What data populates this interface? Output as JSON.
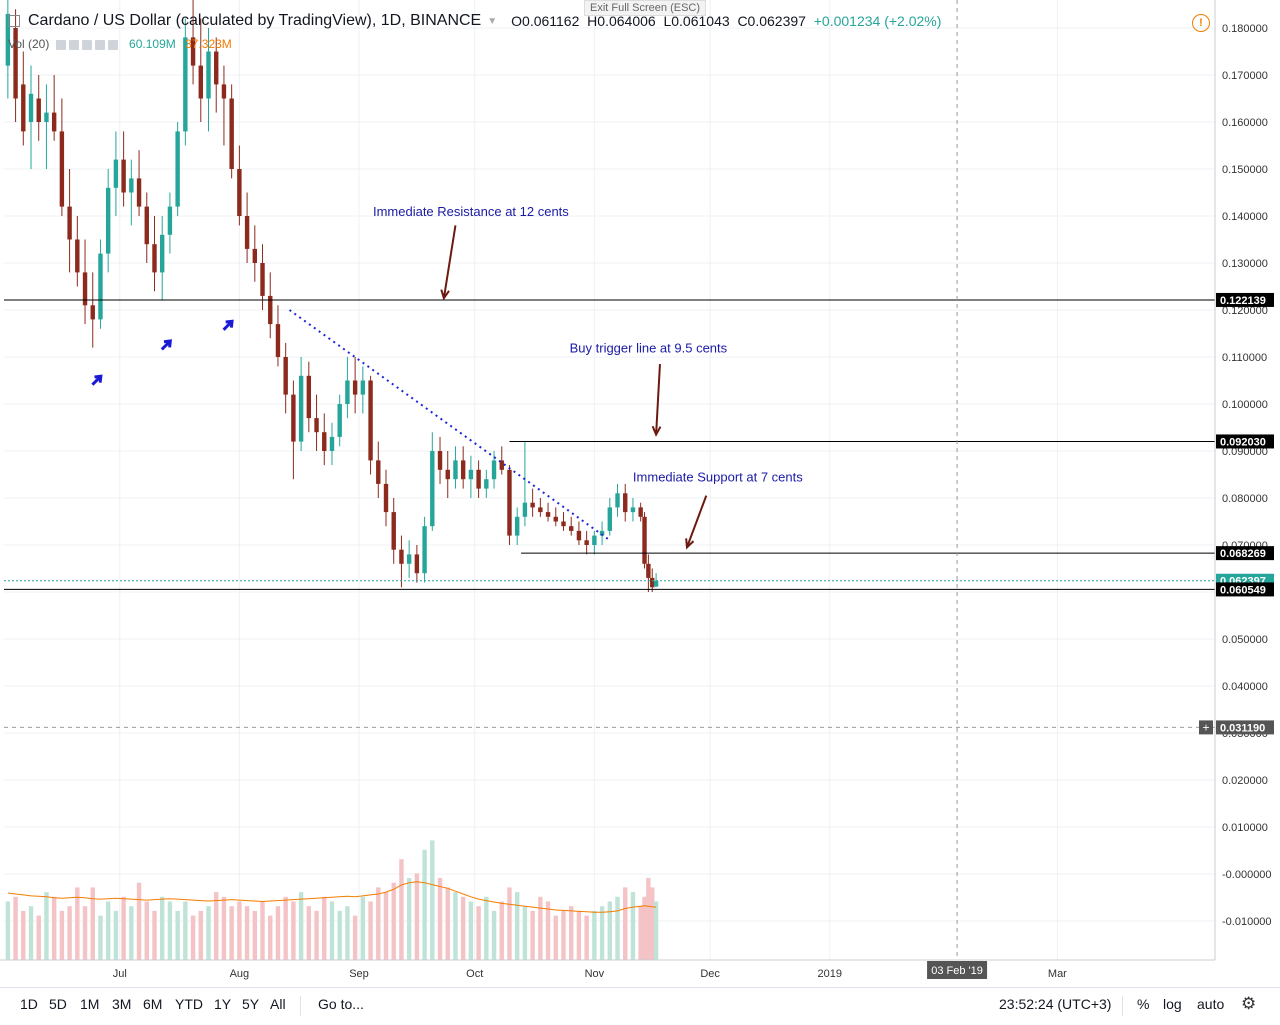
{
  "header": {
    "exit_fullscreen": "Exit Full Screen (ESC)",
    "symbol": "Cardano / US Dollar (calculated by TradingView), 1D, BINANCE",
    "open": "O0.061162",
    "high": "H0.064006",
    "low": "L0.061043",
    "close": "C0.062397",
    "change": "+0.001234 (+2.02%)",
    "vol_label": "Vol (20)",
    "vol_value": "60.109M",
    "vol_ma": "37.323M",
    "warning_icon": "exclamation-circle-icon"
  },
  "chart_data": {
    "type": "candlestick",
    "title": "Cardano / US Dollar (calculated by TradingView), 1D, BINANCE",
    "ylim": [
      -0.015,
      0.185
    ],
    "y_ticks": [
      "0.180000",
      "0.170000",
      "0.160000",
      "0.150000",
      "0.140000",
      "0.130000",
      "0.120000",
      "0.110000",
      "0.100000",
      "0.090000",
      "0.080000",
      "0.070000",
      "0.060000",
      "0.050000",
      "0.040000",
      "0.030000",
      "0.020000",
      "0.010000",
      "-0.000000",
      "-0.010000"
    ],
    "x_ticks": [
      "Jul",
      "Aug",
      "Sep",
      "Oct",
      "Nov",
      "Dec",
      "2019",
      "Mar"
    ],
    "x_range": [
      "2018-06-01",
      "2019-03-25"
    ],
    "price_labels": [
      {
        "value": "0.122139",
        "price": 0.122139,
        "color": "#000000"
      },
      {
        "value": "0.092030",
        "price": 0.09203,
        "color": "#000000"
      },
      {
        "value": "0.068269",
        "price": 0.068269,
        "color": "#000000"
      },
      {
        "value": "0.062397",
        "price": 0.062397,
        "color": "#26a69a"
      },
      {
        "value": "0.060549",
        "price": 0.060549,
        "color": "#000000"
      },
      {
        "value": "0.031190",
        "price": 0.03119,
        "color": "#555555"
      }
    ],
    "crosshair": {
      "date": "03 Feb '19",
      "price": 0.03119
    },
    "horizontal_lines": [
      {
        "price": 0.122139,
        "from": "2018-06-01"
      },
      {
        "price": 0.09203,
        "from": "2018-10-10"
      },
      {
        "price": 0.068269,
        "from": "2018-10-13"
      },
      {
        "price": 0.060549,
        "from": "2018-06-01"
      }
    ],
    "trendline": {
      "from": [
        "2018-08-14",
        0.12
      ],
      "to": [
        "2018-11-05",
        0.071
      ]
    },
    "annotations": [
      {
        "text": "Immediate Resistance at 12 cents",
        "date": "2018-09-30",
        "price": 0.14
      },
      {
        "text": "Buy trigger line at 9.5 cents",
        "date": "2018-11-15",
        "price": 0.111
      },
      {
        "text": "Immediate Support at 7 cents",
        "date": "2018-12-03",
        "price": 0.0835
      }
    ],
    "arrows": [
      {
        "from": [
          "2018-09-26",
          0.138
        ],
        "to": [
          "2018-09-23",
          0.1225
        ]
      },
      {
        "from": [
          "2018-11-18",
          0.1085
        ],
        "to": [
          "2018-11-17",
          0.0935
        ]
      },
      {
        "from": [
          "2018-11-30",
          0.0805
        ],
        "to": [
          "2018-11-25",
          0.0695
        ]
      }
    ],
    "markers": [
      {
        "date": "2018-06-25",
        "price": 0.105
      },
      {
        "date": "2018-07-13",
        "price": 0.1125
      },
      {
        "date": "2018-07-29",
        "price": 0.1167
      }
    ],
    "candles": [
      {
        "d": "2018-06-02",
        "o": 0.172,
        "h": 0.186,
        "l": 0.165,
        "c": 0.183
      },
      {
        "d": "2018-06-04",
        "o": 0.18,
        "h": 0.184,
        "l": 0.16,
        "c": 0.165
      },
      {
        "d": "2018-06-06",
        "o": 0.168,
        "h": 0.175,
        "l": 0.155,
        "c": 0.158
      },
      {
        "d": "2018-06-08",
        "o": 0.16,
        "h": 0.172,
        "l": 0.15,
        "c": 0.166
      },
      {
        "d": "2018-06-10",
        "o": 0.165,
        "h": 0.17,
        "l": 0.156,
        "c": 0.16
      },
      {
        "d": "2018-06-12",
        "o": 0.16,
        "h": 0.168,
        "l": 0.15,
        "c": 0.162
      },
      {
        "d": "2018-06-14",
        "o": 0.162,
        "h": 0.17,
        "l": 0.156,
        "c": 0.158
      },
      {
        "d": "2018-06-16",
        "o": 0.158,
        "h": 0.165,
        "l": 0.14,
        "c": 0.142
      },
      {
        "d": "2018-06-18",
        "o": 0.142,
        "h": 0.15,
        "l": 0.128,
        "c": 0.135
      },
      {
        "d": "2018-06-20",
        "o": 0.135,
        "h": 0.14,
        "l": 0.125,
        "c": 0.128
      },
      {
        "d": "2018-06-22",
        "o": 0.128,
        "h": 0.135,
        "l": 0.117,
        "c": 0.121
      },
      {
        "d": "2018-06-24",
        "o": 0.121,
        "h": 0.128,
        "l": 0.112,
        "c": 0.118
      },
      {
        "d": "2018-06-26",
        "o": 0.118,
        "h": 0.135,
        "l": 0.116,
        "c": 0.132
      },
      {
        "d": "2018-06-28",
        "o": 0.132,
        "h": 0.15,
        "l": 0.128,
        "c": 0.146
      },
      {
        "d": "2018-06-30",
        "o": 0.146,
        "h": 0.158,
        "l": 0.14,
        "c": 0.152
      },
      {
        "d": "2018-07-02",
        "o": 0.152,
        "h": 0.158,
        "l": 0.142,
        "c": 0.145
      },
      {
        "d": "2018-07-04",
        "o": 0.145,
        "h": 0.152,
        "l": 0.138,
        "c": 0.148
      },
      {
        "d": "2018-07-06",
        "o": 0.148,
        "h": 0.154,
        "l": 0.14,
        "c": 0.142
      },
      {
        "d": "2018-07-08",
        "o": 0.142,
        "h": 0.145,
        "l": 0.13,
        "c": 0.134
      },
      {
        "d": "2018-07-10",
        "o": 0.134,
        "h": 0.14,
        "l": 0.124,
        "c": 0.128
      },
      {
        "d": "2018-07-12",
        "o": 0.128,
        "h": 0.14,
        "l": 0.122,
        "c": 0.136
      },
      {
        "d": "2018-07-14",
        "o": 0.136,
        "h": 0.145,
        "l": 0.132,
        "c": 0.142
      },
      {
        "d": "2018-07-16",
        "o": 0.142,
        "h": 0.16,
        "l": 0.14,
        "c": 0.158
      },
      {
        "d": "2018-07-18",
        "o": 0.158,
        "h": 0.182,
        "l": 0.155,
        "c": 0.178
      },
      {
        "d": "2018-07-20",
        "o": 0.178,
        "h": 0.188,
        "l": 0.168,
        "c": 0.172
      },
      {
        "d": "2018-07-22",
        "o": 0.172,
        "h": 0.182,
        "l": 0.16,
        "c": 0.165
      },
      {
        "d": "2018-07-24",
        "o": 0.165,
        "h": 0.18,
        "l": 0.158,
        "c": 0.175
      },
      {
        "d": "2018-07-26",
        "o": 0.175,
        "h": 0.178,
        "l": 0.162,
        "c": 0.168
      },
      {
        "d": "2018-07-28",
        "o": 0.168,
        "h": 0.172,
        "l": 0.155,
        "c": 0.165
      },
      {
        "d": "2018-07-30",
        "o": 0.165,
        "h": 0.168,
        "l": 0.148,
        "c": 0.15
      },
      {
        "d": "2018-08-01",
        "o": 0.15,
        "h": 0.155,
        "l": 0.138,
        "c": 0.14
      },
      {
        "d": "2018-08-03",
        "o": 0.14,
        "h": 0.145,
        "l": 0.13,
        "c": 0.133
      },
      {
        "d": "2018-08-05",
        "o": 0.133,
        "h": 0.138,
        "l": 0.126,
        "c": 0.13
      },
      {
        "d": "2018-08-07",
        "o": 0.13,
        "h": 0.134,
        "l": 0.12,
        "c": 0.123
      },
      {
        "d": "2018-08-09",
        "o": 0.123,
        "h": 0.128,
        "l": 0.114,
        "c": 0.117
      },
      {
        "d": "2018-08-11",
        "o": 0.117,
        "h": 0.121,
        "l": 0.108,
        "c": 0.11
      },
      {
        "d": "2018-08-13",
        "o": 0.11,
        "h": 0.113,
        "l": 0.098,
        "c": 0.102
      },
      {
        "d": "2018-08-15",
        "o": 0.102,
        "h": 0.105,
        "l": 0.084,
        "c": 0.092
      },
      {
        "d": "2018-08-17",
        "o": 0.092,
        "h": 0.11,
        "l": 0.09,
        "c": 0.106
      },
      {
        "d": "2018-08-19",
        "o": 0.106,
        "h": 0.109,
        "l": 0.094,
        "c": 0.097
      },
      {
        "d": "2018-08-21",
        "o": 0.097,
        "h": 0.102,
        "l": 0.09,
        "c": 0.094
      },
      {
        "d": "2018-08-23",
        "o": 0.094,
        "h": 0.098,
        "l": 0.087,
        "c": 0.09
      },
      {
        "d": "2018-08-25",
        "o": 0.09,
        "h": 0.096,
        "l": 0.087,
        "c": 0.093
      },
      {
        "d": "2018-08-27",
        "o": 0.093,
        "h": 0.102,
        "l": 0.091,
        "c": 0.1
      },
      {
        "d": "2018-08-29",
        "o": 0.1,
        "h": 0.11,
        "l": 0.097,
        "c": 0.105
      },
      {
        "d": "2018-08-31",
        "o": 0.105,
        "h": 0.11,
        "l": 0.098,
        "c": 0.102
      },
      {
        "d": "2018-09-02",
        "o": 0.102,
        "h": 0.108,
        "l": 0.098,
        "c": 0.105
      },
      {
        "d": "2018-09-04",
        "o": 0.105,
        "h": 0.106,
        "l": 0.085,
        "c": 0.088
      },
      {
        "d": "2018-09-06",
        "o": 0.088,
        "h": 0.092,
        "l": 0.08,
        "c": 0.083
      },
      {
        "d": "2018-09-08",
        "o": 0.083,
        "h": 0.086,
        "l": 0.074,
        "c": 0.077
      },
      {
        "d": "2018-09-10",
        "o": 0.077,
        "h": 0.08,
        "l": 0.066,
        "c": 0.069
      },
      {
        "d": "2018-09-12",
        "o": 0.069,
        "h": 0.072,
        "l": 0.061,
        "c": 0.066
      },
      {
        "d": "2018-09-14",
        "o": 0.066,
        "h": 0.071,
        "l": 0.063,
        "c": 0.068
      },
      {
        "d": "2018-09-16",
        "o": 0.068,
        "h": 0.07,
        "l": 0.062,
        "c": 0.064
      },
      {
        "d": "2018-09-18",
        "o": 0.064,
        "h": 0.076,
        "l": 0.062,
        "c": 0.074
      },
      {
        "d": "2018-09-20",
        "o": 0.074,
        "h": 0.094,
        "l": 0.073,
        "c": 0.09
      },
      {
        "d": "2018-09-22",
        "o": 0.09,
        "h": 0.093,
        "l": 0.083,
        "c": 0.086
      },
      {
        "d": "2018-09-24",
        "o": 0.086,
        "h": 0.09,
        "l": 0.08,
        "c": 0.084
      },
      {
        "d": "2018-09-26",
        "o": 0.084,
        "h": 0.091,
        "l": 0.082,
        "c": 0.088
      },
      {
        "d": "2018-09-28",
        "o": 0.088,
        "h": 0.091,
        "l": 0.082,
        "c": 0.084
      },
      {
        "d": "2018-09-30",
        "o": 0.084,
        "h": 0.089,
        "l": 0.08,
        "c": 0.086
      },
      {
        "d": "2018-10-02",
        "o": 0.086,
        "h": 0.088,
        "l": 0.08,
        "c": 0.082
      },
      {
        "d": "2018-10-04",
        "o": 0.082,
        "h": 0.086,
        "l": 0.08,
        "c": 0.084
      },
      {
        "d": "2018-10-06",
        "o": 0.084,
        "h": 0.09,
        "l": 0.082,
        "c": 0.088
      },
      {
        "d": "2018-10-08",
        "o": 0.088,
        "h": 0.091,
        "l": 0.085,
        "c": 0.086
      },
      {
        "d": "2018-10-10",
        "o": 0.086,
        "h": 0.087,
        "l": 0.07,
        "c": 0.072
      },
      {
        "d": "2018-10-12",
        "o": 0.072,
        "h": 0.078,
        "l": 0.07,
        "c": 0.076
      },
      {
        "d": "2018-10-14",
        "o": 0.076,
        "h": 0.092,
        "l": 0.074,
        "c": 0.079
      },
      {
        "d": "2018-10-16",
        "o": 0.079,
        "h": 0.082,
        "l": 0.076,
        "c": 0.078
      },
      {
        "d": "2018-10-18",
        "o": 0.078,
        "h": 0.08,
        "l": 0.076,
        "c": 0.077
      },
      {
        "d": "2018-10-20",
        "o": 0.077,
        "h": 0.079,
        "l": 0.075,
        "c": 0.076
      },
      {
        "d": "2018-10-22",
        "o": 0.076,
        "h": 0.078,
        "l": 0.074,
        "c": 0.075
      },
      {
        "d": "2018-10-24",
        "o": 0.075,
        "h": 0.077,
        "l": 0.073,
        "c": 0.074
      },
      {
        "d": "2018-10-26",
        "o": 0.074,
        "h": 0.076,
        "l": 0.072,
        "c": 0.073
      },
      {
        "d": "2018-10-28",
        "o": 0.073,
        "h": 0.075,
        "l": 0.07,
        "c": 0.071
      },
      {
        "d": "2018-10-30",
        "o": 0.071,
        "h": 0.073,
        "l": 0.068,
        "c": 0.07
      },
      {
        "d": "2018-11-01",
        "o": 0.07,
        "h": 0.073,
        "l": 0.068,
        "c": 0.072
      },
      {
        "d": "2018-11-03",
        "o": 0.072,
        "h": 0.075,
        "l": 0.07,
        "c": 0.073
      },
      {
        "d": "2018-11-05",
        "o": 0.073,
        "h": 0.08,
        "l": 0.072,
        "c": 0.078
      },
      {
        "d": "2018-11-07",
        "o": 0.078,
        "h": 0.083,
        "l": 0.076,
        "c": 0.081
      },
      {
        "d": "2018-11-09",
        "o": 0.081,
        "h": 0.083,
        "l": 0.075,
        "c": 0.077
      },
      {
        "d": "2018-11-11",
        "o": 0.077,
        "h": 0.08,
        "l": 0.075,
        "c": 0.078
      },
      {
        "d": "2018-11-13",
        "o": 0.078,
        "h": 0.079,
        "l": 0.075,
        "c": 0.076
      },
      {
        "d": "2018-11-14",
        "o": 0.076,
        "h": 0.077,
        "l": 0.065,
        "c": 0.066
      },
      {
        "d": "2018-11-15",
        "o": 0.066,
        "h": 0.068,
        "l": 0.06,
        "c": 0.063
      },
      {
        "d": "2018-11-16",
        "o": 0.063,
        "h": 0.065,
        "l": 0.06,
        "c": 0.061
      },
      {
        "d": "2018-11-17",
        "o": 0.061162,
        "h": 0.064006,
        "l": 0.061043,
        "c": 0.062397
      }
    ],
    "volume": [
      0.005,
      0.006,
      0.003,
      0.004,
      0.002,
      0.007,
      0.006,
      0.003,
      0.004,
      0.008,
      0.004,
      0.008,
      0.002,
      0.005,
      0.003,
      0.006,
      0.004,
      0.009,
      0.005,
      0.003,
      0.006,
      0.005,
      0.003,
      0.005,
      0.002,
      0.003,
      0.004,
      0.007,
      0.006,
      0.004,
      0.005,
      0.004,
      0.003,
      0.005,
      0.002,
      0.004,
      0.006,
      0.005,
      0.007,
      0.004,
      0.003,
      0.006,
      0.005,
      0.003,
      0.004,
      0.002,
      0.006,
      0.005,
      0.008,
      0.007,
      0.009,
      0.014,
      0.01,
      0.011,
      0.016,
      0.018,
      0.01,
      0.008,
      0.007,
      0.006,
      0.005,
      0.004,
      0.006,
      0.003,
      0.005,
      0.008,
      0.007,
      0.004,
      0.003,
      0.006,
      0.005,
      0.002,
      0.003,
      0.004,
      0.003,
      0.002,
      0.003,
      0.004,
      0.005,
      0.006,
      0.008,
      0.007,
      0.004,
      0.006,
      0.01,
      0.008,
      0.005,
      0.003
    ],
    "volume_ma": [
      0.0068,
      0.0066,
      0.0064,
      0.0062,
      0.0061,
      0.006,
      0.0058,
      0.0057,
      0.0058,
      0.0059,
      0.0058,
      0.0056,
      0.0055,
      0.0056,
      0.0057,
      0.0056,
      0.0055,
      0.0054,
      0.0053,
      0.0054,
      0.0055,
      0.0056,
      0.0055,
      0.0054,
      0.0053,
      0.0052,
      0.0051,
      0.0052,
      0.0053,
      0.0054,
      0.0053,
      0.0052,
      0.0051,
      0.005,
      0.0051,
      0.0052,
      0.0053,
      0.0054,
      0.0055,
      0.0056,
      0.0057,
      0.0058,
      0.0059,
      0.006,
      0.0061,
      0.006,
      0.0062,
      0.0064,
      0.0066,
      0.007,
      0.0076,
      0.0085,
      0.009,
      0.0092,
      0.009,
      0.0086,
      0.0082,
      0.0078,
      0.0072,
      0.0066,
      0.006,
      0.0055,
      0.0052,
      0.0049,
      0.0046,
      0.0044,
      0.0042,
      0.004,
      0.0038,
      0.0036,
      0.0034,
      0.0032,
      0.0031,
      0.003,
      0.0029,
      0.0028,
      0.0027,
      0.0027,
      0.0028,
      0.003,
      0.0035,
      0.0038,
      0.004,
      0.0041,
      0.004,
      0.0039,
      0.0038,
      0.0036
    ]
  },
  "bottom_bar": {
    "timeframes": [
      "1D",
      "5D",
      "1M",
      "3M",
      "6M",
      "YTD",
      "1Y",
      "5Y",
      "All"
    ],
    "goto": "Go to...",
    "clock": "23:52:24 (UTC+3)",
    "percent": "%",
    "log": "log",
    "auto": "auto",
    "settings_icon": "gear-icon"
  }
}
